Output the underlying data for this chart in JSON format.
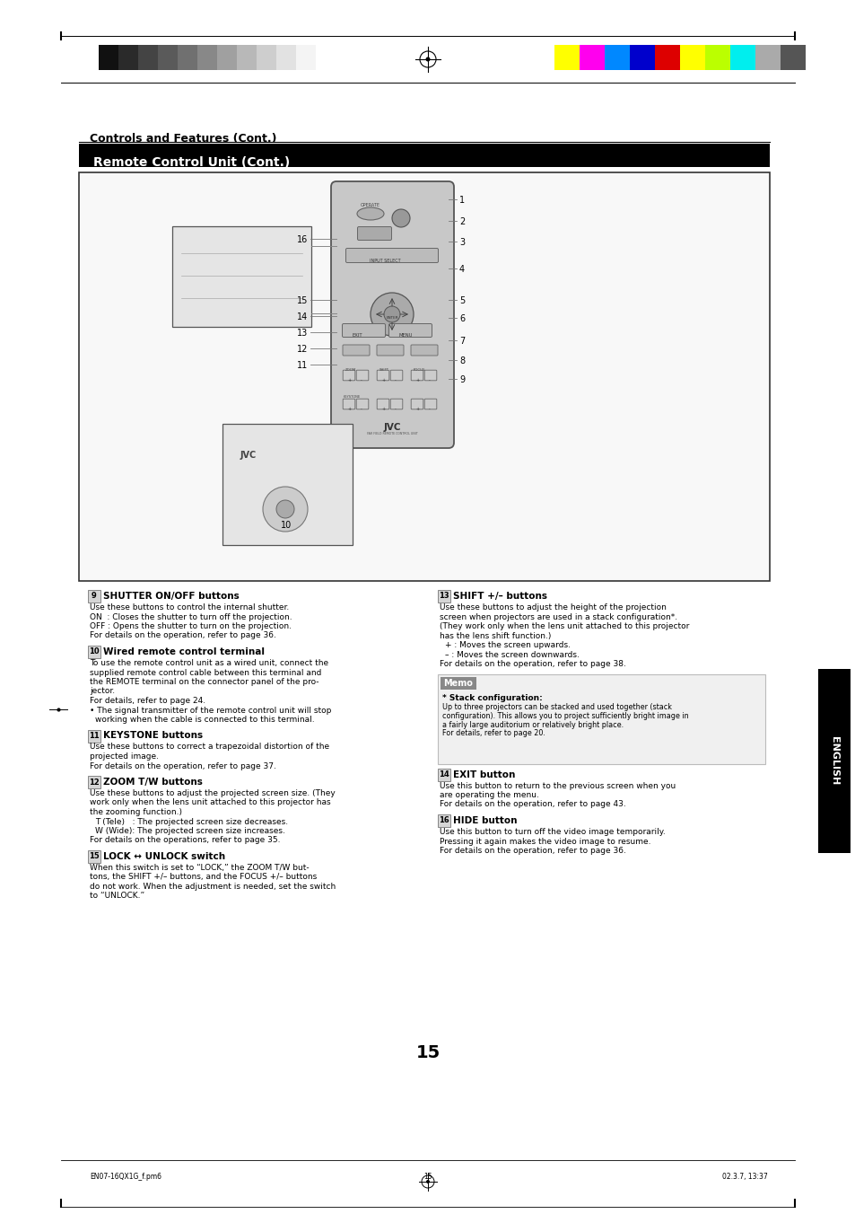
{
  "page_bg": "#ffffff",
  "page_width": 9.54,
  "page_height": 13.52,
  "dpi": 100,
  "header_stripe_colors_left": [
    "#111111",
    "#2a2a2a",
    "#444444",
    "#5a5a5a",
    "#707070",
    "#888888",
    "#a0a0a0",
    "#b8b8b8",
    "#cecece",
    "#e2e2e2",
    "#f4f4f4"
  ],
  "header_stripe_colors_right": [
    "#ffff00",
    "#ff00ee",
    "#0088ff",
    "#0000cc",
    "#dd0000",
    "#ffff00",
    "#bbff00",
    "#00eeee",
    "#aaaaaa",
    "#555555"
  ],
  "title_controls": "Controls and Features (Cont.)",
  "title_remote": "Remote Control Unit (Cont.)",
  "section9_num": "9",
  "section9_title": "SHUTTER ON/OFF buttons",
  "section9_body_lines": [
    "Use these buttons to control the internal shutter.",
    "ON  : Closes the shutter to turn off the projection.",
    "OFF : Opens the shutter to turn on the projection.",
    "For details on the operation, refer to page 36."
  ],
  "section10_num": "10",
  "section10_title": "Wired remote control terminal",
  "section10_body_lines": [
    "To use the remote control unit as a wired unit, connect the",
    "supplied remote control cable between this terminal and",
    "the REMOTE terminal on the connector panel of the pro-",
    "jector.",
    "For details, refer to page 24.",
    "• The signal transmitter of the remote control unit will stop",
    "  working when the cable is connected to this terminal."
  ],
  "section11_num": "11",
  "section11_title": "KEYSTONE buttons",
  "section11_body_lines": [
    "Use these buttons to correct a trapezoidal distortion of the",
    "projected image.",
    "For details on the operation, refer to page 37."
  ],
  "section12_num": "12",
  "section12_title": "ZOOM T/W buttons",
  "section12_body_lines": [
    "Use these buttons to adjust the projected screen size. (They",
    "work only when the lens unit attached to this projector has",
    "the zooming function.)",
    "  T (Tele)   : The projected screen size decreases.",
    "  W (Wide): The projected screen size increases.",
    "For details on the operations, refer to page 35."
  ],
  "section13_num": "13",
  "section13_title": "SHIFT +/– buttons",
  "section13_body_lines": [
    "Use these buttons to adjust the height of the projection",
    "screen when projectors are used in a stack configuration*.",
    "(They work only when the lens unit attached to this projector",
    "has the lens shift function.)",
    "  + : Moves the screen upwards.",
    "  – : Moves the screen downwards.",
    "For details on the operation, refer to page 38."
  ],
  "memo_label": "Memo",
  "memo_stack_title": "* Stack configuration:",
  "memo_stack_body_lines": [
    "Up to three projectors can be stacked and used together (stack",
    "configuration). This allows you to project sufficiently bright image in",
    "a fairly large auditorium or relatively bright place.",
    "For details, refer to page 20."
  ],
  "section14_num": "14",
  "section14_title": "EXIT button",
  "section14_body_lines": [
    "Use this button to return to the previous screen when you",
    "are operating the menu.",
    "For details on the operation, refer to page 43."
  ],
  "section15_num": "15",
  "section15_title": "LOCK ↔ UNLOCK switch",
  "section15_body_lines": [
    "When this switch is set to “LOCK,” the ZOOM T/W but-",
    "tons, the SHIFT +/– buttons, and the FOCUS +/– buttons",
    "do not work. When the adjustment is needed, set the switch",
    "to “UNLOCK.”"
  ],
  "section16_num": "16",
  "section16_title": "HIDE button",
  "section16_body_lines": [
    "Use this button to turn off the video image temporarily.",
    "Pressing it again makes the video image to resume.",
    "For details on the operation, refer to page 36."
  ],
  "page_number": "15",
  "footer_left": "EN07-16QX1G_f.pm6",
  "footer_center": "15",
  "footer_right": "02.3.7, 13:37",
  "english_tab": "ENGLISH"
}
